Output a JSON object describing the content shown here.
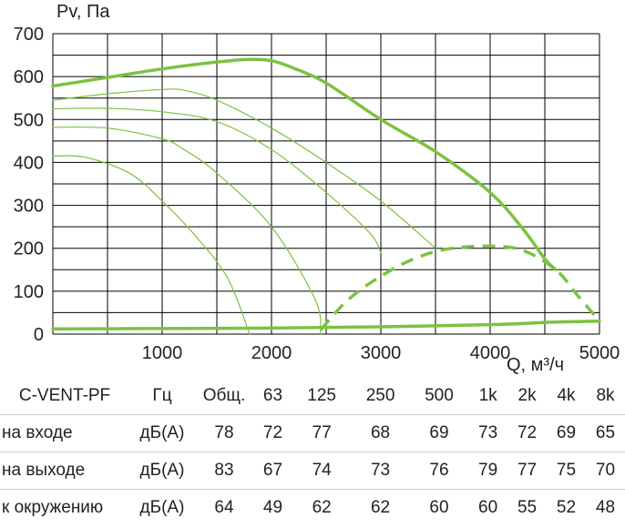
{
  "chart_data": {
    "type": "line",
    "ylabel": "Pv, Па",
    "xlabel": "Q, м³/ч",
    "xlim": [
      0,
      5000
    ],
    "ylim": [
      0,
      700
    ],
    "x_ticks": [
      1000,
      2000,
      3000,
      4000,
      5000
    ],
    "y_ticks": [
      0,
      100,
      200,
      300,
      400,
      500,
      600,
      700
    ],
    "grid": true,
    "colors": {
      "curve": "#7cc242",
      "grid": "#000000"
    },
    "series": [
      {
        "style": "thick",
        "points": [
          [
            0,
            578
          ],
          [
            500,
            598
          ],
          [
            1000,
            618
          ],
          [
            1500,
            634
          ],
          [
            1800,
            640
          ],
          [
            2000,
            637
          ],
          [
            2200,
            620
          ],
          [
            2500,
            585
          ],
          [
            3000,
            500
          ],
          [
            3500,
            425
          ],
          [
            4000,
            330
          ],
          [
            4300,
            245
          ],
          [
            4500,
            175
          ],
          [
            4600,
            150
          ]
        ]
      },
      {
        "style": "thin",
        "points": [
          [
            0,
            545
          ],
          [
            500,
            560
          ],
          [
            1000,
            570
          ],
          [
            1200,
            568
          ],
          [
            1500,
            545
          ],
          [
            2000,
            480
          ],
          [
            2500,
            400
          ],
          [
            3000,
            310
          ],
          [
            3500,
            200
          ]
        ]
      },
      {
        "style": "thin",
        "points": [
          [
            0,
            525
          ],
          [
            500,
            526
          ],
          [
            1000,
            518
          ],
          [
            1500,
            495
          ],
          [
            2000,
            430
          ],
          [
            2500,
            330
          ],
          [
            2900,
            235
          ],
          [
            3000,
            190
          ]
        ]
      },
      {
        "style": "thin",
        "points": [
          [
            0,
            482
          ],
          [
            500,
            480
          ],
          [
            1000,
            455
          ],
          [
            1200,
            430
          ],
          [
            1500,
            375
          ],
          [
            2000,
            250
          ],
          [
            2400,
            80
          ],
          [
            2450,
            0
          ]
        ]
      },
      {
        "style": "thin",
        "points": [
          [
            0,
            415
          ],
          [
            300,
            412
          ],
          [
            700,
            375
          ],
          [
            1000,
            310
          ],
          [
            1300,
            230
          ],
          [
            1600,
            130
          ],
          [
            1800,
            0
          ]
        ]
      },
      {
        "style": "thick",
        "points": [
          [
            0,
            12
          ],
          [
            1000,
            13
          ],
          [
            2000,
            14
          ],
          [
            3000,
            17
          ],
          [
            4000,
            22
          ],
          [
            4600,
            28
          ],
          [
            5000,
            30
          ]
        ]
      },
      {
        "style": "dashed",
        "points": [
          [
            2450,
            10
          ],
          [
            2700,
            80
          ],
          [
            3000,
            135
          ],
          [
            3300,
            175
          ],
          [
            3600,
            198
          ],
          [
            4000,
            205
          ],
          [
            4300,
            195
          ],
          [
            4600,
            150
          ],
          [
            4800,
            90
          ],
          [
            5000,
            30
          ]
        ]
      }
    ]
  },
  "table": {
    "model": "C-VENT-PF",
    "unit_header": "Гц",
    "total_header": "Общ.",
    "bands": [
      "63",
      "125",
      "250",
      "500",
      "1k",
      "2k",
      "4k",
      "8k"
    ],
    "rows": [
      {
        "label": "на входе",
        "unit": "дБ(А)",
        "total": "78",
        "values": [
          "72",
          "77",
          "68",
          "69",
          "73",
          "72",
          "69",
          "65"
        ]
      },
      {
        "label": "на выходе",
        "unit": "дБ(А)",
        "total": "83",
        "values": [
          "67",
          "74",
          "73",
          "76",
          "79",
          "77",
          "75",
          "70"
        ]
      },
      {
        "label": "к окружению",
        "unit": "дБ(А)",
        "total": "64",
        "values": [
          "49",
          "62",
          "62",
          "60",
          "60",
          "55",
          "52",
          "48"
        ]
      }
    ]
  }
}
